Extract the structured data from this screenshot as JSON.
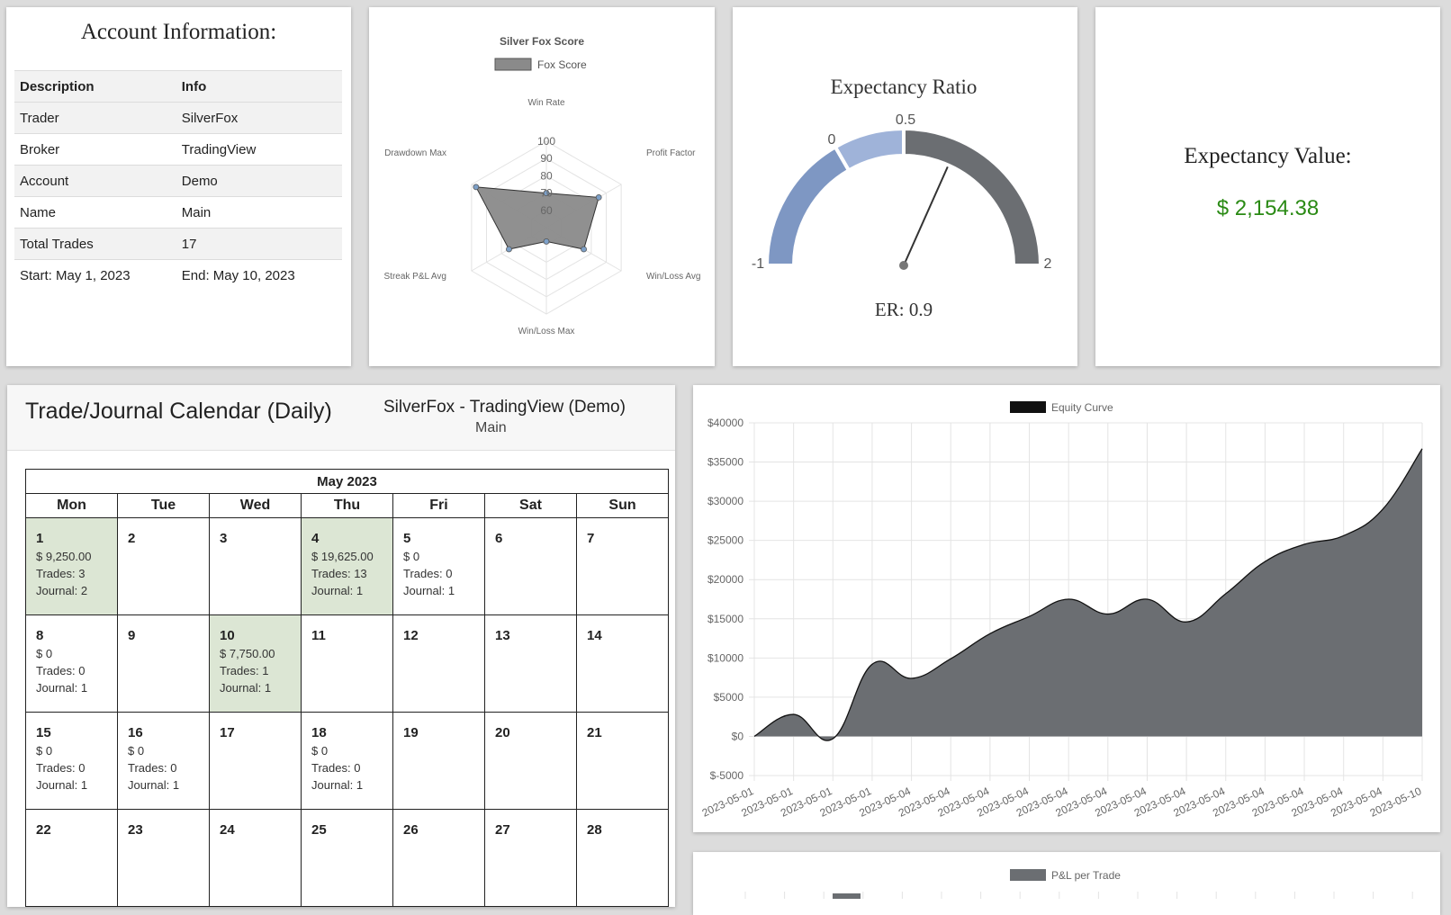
{
  "account": {
    "title": "Account Information:",
    "headers": [
      "Description",
      "Info"
    ],
    "rows": [
      [
        "Trader",
        "SilverFox"
      ],
      [
        "Broker",
        "TradingView"
      ],
      [
        "Account",
        "Demo"
      ],
      [
        "Name",
        "Main"
      ],
      [
        "Total Trades",
        "17"
      ],
      [
        "Start: May 1, 2023",
        "End: May 10, 2023"
      ]
    ]
  },
  "radar": {
    "title": "Silver Fox Score",
    "legend": "Fox Score",
    "axes": [
      "Win Rate",
      "Profit Factor",
      "Win/Loss Avg",
      "Win/Loss Max",
      "Streak P&L Avg",
      "Drawdown Max"
    ],
    "ticks": [
      "60",
      "70",
      "80",
      "90",
      "100"
    ],
    "colors": {
      "fill": "#8a8a8a",
      "stroke": "#333333",
      "point": "#7da0c8"
    }
  },
  "gauge": {
    "title": "Expectancy Ratio",
    "labels": [
      "-1",
      "0",
      "0.5",
      "2"
    ],
    "readout": "ER: 0.9",
    "value": 0.9,
    "colors": {
      "seg1": "#7e97c3",
      "seg2": "#9fb3d9",
      "seg3": "#6b6e72"
    }
  },
  "expectancy": {
    "label": "Expectancy Value:",
    "value": "$ 2,154.38",
    "color": "#2a8a14"
  },
  "calendar": {
    "title": "Trade/Journal Calendar (Daily)",
    "subtitle": "SilverFox - TradingView (Demo)",
    "subtitle2": "Main",
    "month": "May 2023",
    "dow": [
      "Mon",
      "Tue",
      "Wed",
      "Thu",
      "Fri",
      "Sat",
      "Sun"
    ],
    "weeks": [
      [
        {
          "day": "1",
          "lines": [
            "$ 9,250.00",
            "Trades: 3",
            "Journal: 2"
          ],
          "highlight": true
        },
        {
          "day": "2",
          "lines": []
        },
        {
          "day": "3",
          "lines": []
        },
        {
          "day": "4",
          "lines": [
            "$ 19,625.00",
            "Trades: 13",
            "Journal: 1"
          ],
          "highlight": true
        },
        {
          "day": "5",
          "lines": [
            "$ 0",
            "Trades: 0",
            "Journal: 1"
          ]
        },
        {
          "day": "6",
          "lines": []
        },
        {
          "day": "7",
          "lines": []
        }
      ],
      [
        {
          "day": "8",
          "lines": [
            "$ 0",
            "Trades: 0",
            "Journal: 1"
          ]
        },
        {
          "day": "9",
          "lines": []
        },
        {
          "day": "10",
          "lines": [
            "$ 7,750.00",
            "Trades: 1",
            "Journal: 1"
          ],
          "highlight": true
        },
        {
          "day": "11",
          "lines": []
        },
        {
          "day": "12",
          "lines": []
        },
        {
          "day": "13",
          "lines": []
        },
        {
          "day": "14",
          "lines": []
        }
      ],
      [
        {
          "day": "15",
          "lines": [
            "$ 0",
            "Trades: 0",
            "Journal: 1"
          ]
        },
        {
          "day": "16",
          "lines": [
            "$ 0",
            "Trades: 0",
            "Journal: 1"
          ]
        },
        {
          "day": "17",
          "lines": []
        },
        {
          "day": "18",
          "lines": [
            "$ 0",
            "Trades: 0",
            "Journal: 1"
          ]
        },
        {
          "day": "19",
          "lines": []
        },
        {
          "day": "20",
          "lines": []
        },
        {
          "day": "21",
          "lines": []
        }
      ],
      [
        {
          "day": "22",
          "lines": []
        },
        {
          "day": "23",
          "lines": []
        },
        {
          "day": "24",
          "lines": []
        },
        {
          "day": "25",
          "lines": []
        },
        {
          "day": "26",
          "lines": []
        },
        {
          "day": "27",
          "lines": []
        },
        {
          "day": "28",
          "lines": []
        }
      ]
    ]
  },
  "chart_data": [
    {
      "type": "radar",
      "title": "Silver Fox Score",
      "series": [
        {
          "name": "Fox Score",
          "values": [
            70,
            85,
            75,
            58,
            75,
            97
          ]
        }
      ],
      "categories": [
        "Win Rate",
        "Profit Factor",
        "Win/Loss Avg",
        "Win/Loss Max",
        "Streak P&L Avg",
        "Drawdown Max"
      ],
      "rlim": [
        50,
        100
      ]
    },
    {
      "type": "area",
      "title": "",
      "series": [
        {
          "name": "Equity Curve",
          "values": [
            0,
            2800,
            -300,
            9200,
            7400,
            9900,
            13100,
            15300,
            17500,
            15600,
            17500,
            14600,
            18200,
            22300,
            24500,
            25600,
            29000,
            36700
          ]
        }
      ],
      "x": [
        "2023-05-01",
        "2023-05-01",
        "2023-05-01",
        "2023-05-01",
        "2023-05-04",
        "2023-05-04",
        "2023-05-04",
        "2023-05-04",
        "2023-05-04",
        "2023-05-04",
        "2023-05-04",
        "2023-05-04",
        "2023-05-04",
        "2023-05-04",
        "2023-05-04",
        "2023-05-04",
        "2023-05-04",
        "2023-05-10"
      ],
      "yticks": [
        "$-5000",
        "$0",
        "$5000",
        "$10000",
        "$15000",
        "$20000",
        "$25000",
        "$30000",
        "$35000",
        "$40000"
      ],
      "ylim": [
        -5000,
        40000
      ],
      "grid": true,
      "legend": "top-center",
      "color": "#6b6e72"
    },
    {
      "type": "bar",
      "title": "",
      "series": [
        {
          "name": "P&L per Trade",
          "values": []
        }
      ],
      "legend": "top-center",
      "color": "#6b6e72"
    }
  ]
}
